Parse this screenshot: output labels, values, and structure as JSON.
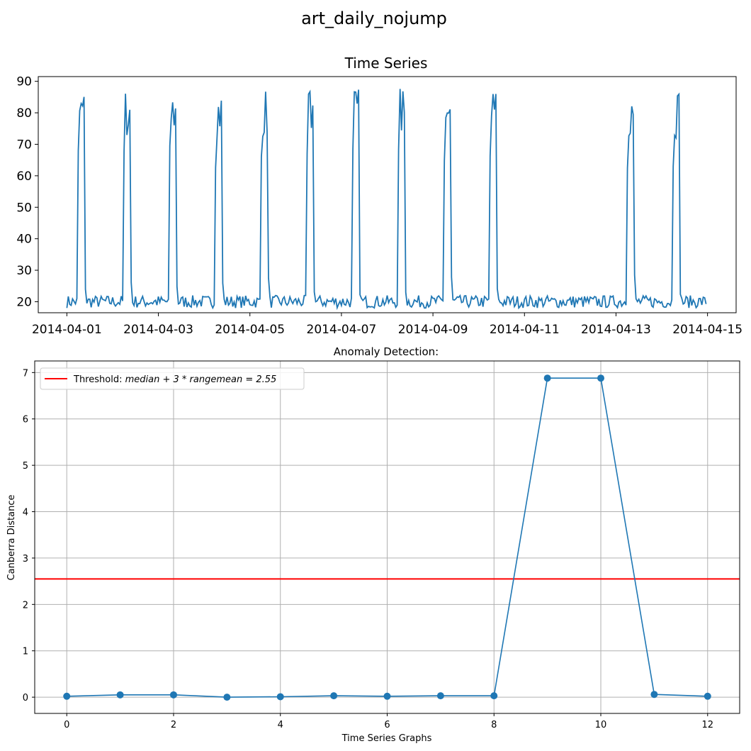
{
  "figure": {
    "suptitle": "art_daily_nojump"
  },
  "colors": {
    "series": "#1f77b4",
    "threshold": "#ff0000",
    "grid": "#b0b0b0"
  },
  "chart_data": [
    {
      "type": "line",
      "title": "Time Series",
      "xlabel": "",
      "ylabel": "",
      "x_start": "2014-04-01",
      "x_end": "2014-04-15",
      "xticks": [
        "2014-04-01",
        "2014-04-03",
        "2014-04-05",
        "2014-04-07",
        "2014-04-09",
        "2014-04-11",
        "2014-04-13",
        "2014-04-15"
      ],
      "yticks": [
        20,
        30,
        40,
        50,
        60,
        70,
        80,
        90
      ],
      "ylim": [
        16.5,
        91.5
      ],
      "xlim": [
        "2014-03-31T09:00",
        "2014-04-15T15:00"
      ],
      "grid": false,
      "series": [
        {
          "pattern": "daily",
          "low_level": [
            18,
            22
          ],
          "high_level": [
            72,
            88
          ],
          "high_start": "0.25 day",
          "high_end": "0.40 day",
          "quiet_days": [
            "2014-04-11",
            "2014-04-12"
          ],
          "x_first": "2014-04-01",
          "x_last": "2014-04-14T23:55"
        }
      ]
    },
    {
      "type": "line",
      "title": "Anomaly Detection:",
      "xlabel": "Time Series Graphs",
      "ylabel": "Canberra Distance",
      "x": [
        0,
        1,
        2,
        3,
        4,
        5,
        6,
        7,
        8,
        9,
        10,
        11,
        12
      ],
      "xticks": [
        0,
        2,
        4,
        6,
        8,
        10,
        12
      ],
      "yticks": [
        0,
        1,
        2,
        3,
        4,
        5,
        6,
        7
      ],
      "xlim": [
        -0.6,
        12.6
      ],
      "ylim": [
        -0.35,
        7.25
      ],
      "grid": true,
      "legend": "top-left",
      "series": [
        {
          "values": [
            0.02,
            0.05,
            0.05,
            0.0,
            0.01,
            0.03,
            0.02,
            0.03,
            0.03,
            6.88,
            6.88,
            0.06,
            0.02
          ]
        }
      ],
      "threshold": {
        "value": 2.55,
        "label_prefix": "Threshold: ",
        "label_expr": "median + 3 * rangemean = 2.55"
      }
    }
  ]
}
